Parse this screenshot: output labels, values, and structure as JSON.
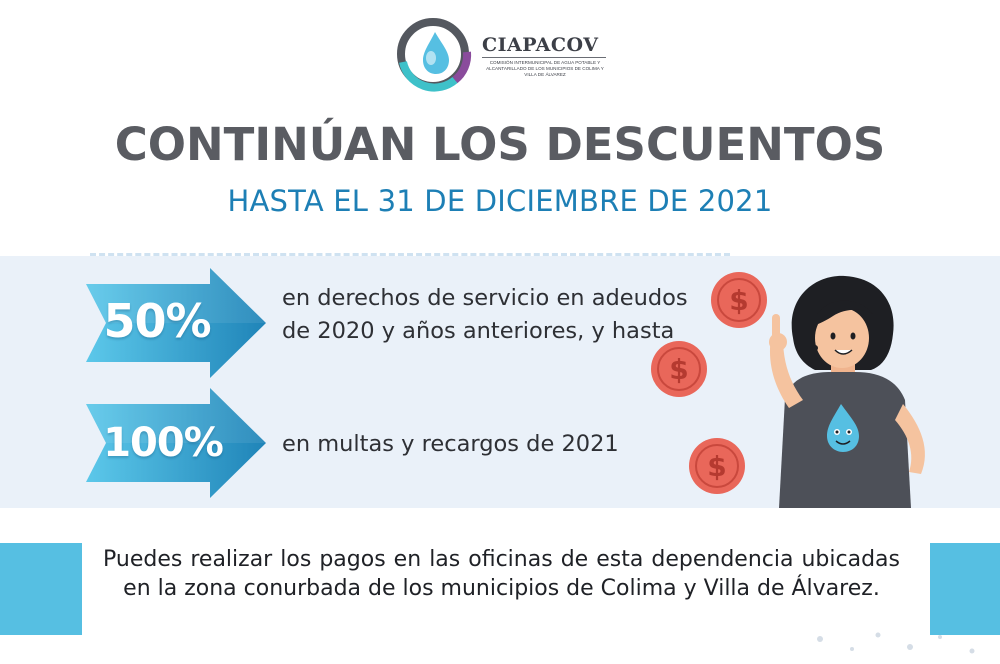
{
  "brand": {
    "name": "CIAPACOV",
    "subtitle": "Comisión Intermunicipal de Agua Potable y Alcantarillado de los Municipios de Colima y Villa de Álvarez"
  },
  "header": {
    "title": "CONTINÚAN LOS DESCUENTOS",
    "subtitle": "HASTA EL 31 DE DICIEMBRE DE 2021"
  },
  "discounts": [
    {
      "percent": "50%",
      "description": "en derechos de servicio en adeudos de 2020 y años anteriores, y hasta"
    },
    {
      "percent": "100%",
      "description": "en multas y recargos de 2021"
    }
  ],
  "coins": {
    "symbol": "$"
  },
  "footer": {
    "text": "Puedes realizar los pagos en las oficinas de esta dependencia ubicadas en la zona conurbada de los municipios de Colima y Villa de Álvarez."
  },
  "colors": {
    "title_gray": "#5a5c62",
    "accent_blue": "#1d7fb5",
    "arrow_light": "#5cc8ea",
    "arrow_dark": "#1f84b8",
    "band": "#eaf1f9",
    "coin": "#e9675a",
    "footer_bar": "#56bfe2"
  }
}
